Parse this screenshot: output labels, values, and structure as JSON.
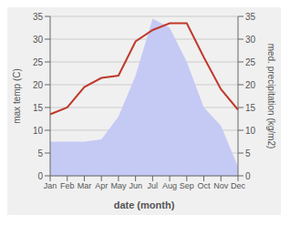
{
  "chart_data": {
    "type": "line",
    "xlabel": "date (month)",
    "ylabel": "max temp (C)",
    "y2label": "med. precipitation (kg/m2)",
    "categories": [
      "Jan",
      "Feb",
      "Mar",
      "Apr",
      "May",
      "Jun",
      "Jul",
      "Aug",
      "Sep",
      "Oct",
      "Nov",
      "Dec"
    ],
    "series": [
      {
        "type": "area",
        "color": "#c5caf5",
        "axis": "y2",
        "values": [
          7.5,
          7.5,
          7.5,
          8.0,
          13.0,
          22.0,
          34.5,
          32.5,
          25.0,
          15.0,
          11.0,
          2.0
        ]
      },
      {
        "type": "line",
        "color": "#c0392b",
        "values": [
          13.5,
          15.0,
          19.5,
          21.5,
          22.0,
          29.5,
          32.0,
          33.5,
          33.5,
          26.0,
          19.0,
          14.5
        ]
      }
    ],
    "ylim": [
      0,
      35
    ],
    "yticks": [
      0,
      5,
      10,
      15,
      20,
      25,
      30,
      35
    ],
    "y2lim": [
      0,
      35
    ],
    "y2ticks": [
      0,
      5,
      10,
      15,
      20,
      25,
      30,
      35
    ],
    "grid": true
  }
}
